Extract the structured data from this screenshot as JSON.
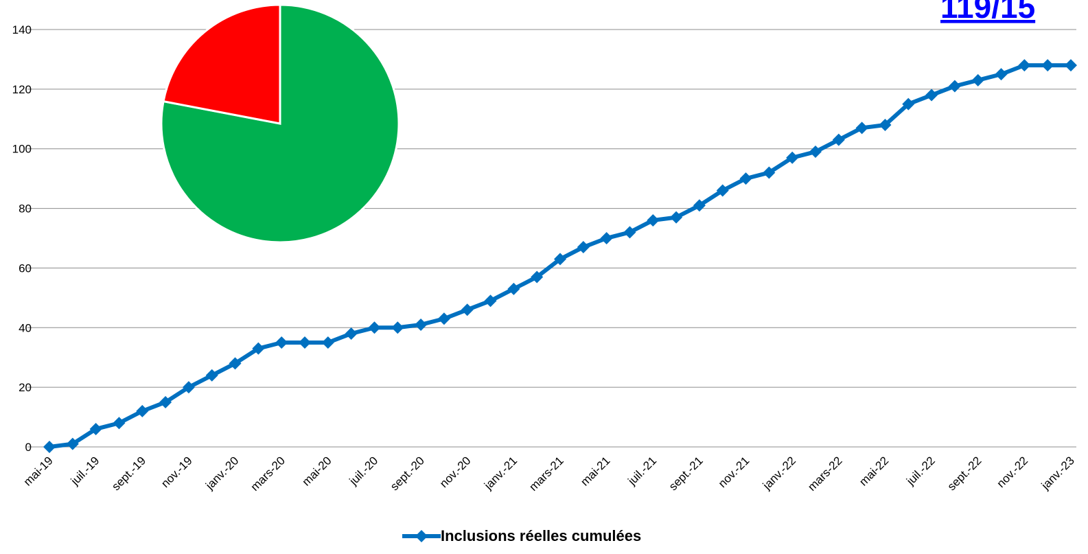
{
  "chart_data": [
    {
      "type": "line",
      "categories": [
        "mai-19",
        null,
        "juil.-19",
        null,
        "sept.-19",
        null,
        "nov.-19",
        null,
        "janv.-20",
        null,
        "mars-20",
        null,
        "mai-20",
        null,
        "juil.-20",
        null,
        "sept.-20",
        null,
        "nov.-20",
        null,
        "janv.-21",
        null,
        "mars-21",
        null,
        "mai-21",
        null,
        "juil.-21",
        null,
        "sept.-21",
        null,
        "nov.-21",
        null,
        "janv.-22",
        null,
        "mars-22",
        null,
        "mai-22",
        null,
        "juil.-22",
        null,
        "sept.-22",
        null,
        "nov.-22",
        null,
        "janv.-23"
      ],
      "series": [
        {
          "name": "Inclusions réelles cumulées",
          "color": "#0070c0",
          "values": [
            0,
            1,
            6,
            8,
            12,
            15,
            20,
            24,
            28,
            33,
            35,
            35,
            35,
            38,
            40,
            40,
            41,
            43,
            46,
            49,
            53,
            57,
            63,
            67,
            70,
            72,
            76,
            77,
            81,
            86,
            90,
            92,
            97,
            99,
            103,
            107,
            108,
            115,
            118,
            121,
            123,
            125,
            128,
            128,
            128
          ]
        }
      ],
      "ylim": [
        0,
        140
      ],
      "yticks": [
        0,
        20,
        40,
        60,
        80,
        100,
        120,
        140
      ],
      "grid": true,
      "legend": "bottom",
      "annotation": "119/15"
    },
    {
      "type": "pie",
      "values": [
        78,
        22
      ],
      "colors": [
        "#00b050",
        "#ff0000"
      ]
    }
  ]
}
